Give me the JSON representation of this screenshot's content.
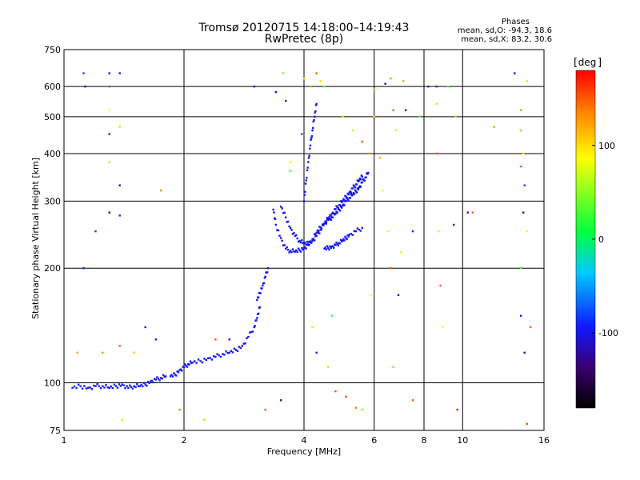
{
  "title": "Tromsø 20120715 14:18:00–14:19:43",
  "subtitle": "RwPretec (8p)",
  "phase_info": {
    "heading": "Phases",
    "line_o": "mean, sd,O: -94.3, 18.6",
    "line_x": "mean, sd,X: 83.2, 30.6"
  },
  "colorbar": {
    "unit": "deg",
    "range": [
      -180,
      180
    ],
    "ticks": [
      100,
      0,
      -100
    ]
  },
  "chart_data": {
    "type": "scatter",
    "title": "Tromsø 20120715 14:18:00–14:19:43",
    "xlabel": "Frequency [MHz]",
    "ylabel": "Stationary phase Virtual Height [km]",
    "xscale": "log",
    "yscale": "log",
    "xlim": [
      1,
      16
    ],
    "ylim": [
      75,
      750
    ],
    "xticks": [
      1,
      2,
      4,
      6,
      8,
      10,
      16
    ],
    "yticks": [
      75,
      100,
      200,
      300,
      400,
      500,
      600,
      750
    ],
    "grid": true,
    "color_variable": "phase [deg]",
    "traces": [
      {
        "phase": -95,
        "x": [
          1.05,
          1.1,
          1.15,
          1.2,
          1.25,
          1.3,
          1.35,
          1.4,
          1.45,
          1.5,
          1.55,
          1.6,
          1.65,
          1.7,
          1.75,
          1.8
        ],
        "y": [
          97,
          98,
          97,
          98,
          98,
          97,
          98,
          99,
          97,
          98,
          98,
          99,
          101,
          102,
          103,
          104
        ]
      },
      {
        "phase": -98,
        "x": [
          1.85,
          1.9,
          1.95,
          2.0,
          2.05,
          2.1,
          2.2,
          2.3,
          2.4,
          2.5,
          2.6,
          2.7,
          2.8,
          2.9,
          3.0,
          3.05,
          3.1
        ],
        "y": [
          104,
          105,
          108,
          110,
          112,
          113,
          114,
          116,
          117,
          119,
          120,
          122,
          125,
          132,
          140,
          148,
          158
        ]
      },
      {
        "phase": -96,
        "x": [
          3.05,
          3.1,
          3.15,
          3.2,
          3.25
        ],
        "y": [
          165,
          172,
          180,
          190,
          200
        ]
      },
      {
        "phase": -100,
        "x": [
          3.35,
          3.4,
          3.5,
          3.6,
          3.7,
          3.8,
          3.9,
          4.0,
          4.1,
          4.2,
          4.3,
          4.4,
          4.5,
          4.6,
          4.7,
          4.8,
          4.9,
          5.0,
          5.1,
          5.2,
          5.3,
          5.4,
          5.5,
          5.6,
          5.7,
          5.8
        ],
        "y": [
          285,
          260,
          240,
          225,
          222,
          221,
          223,
          226,
          230,
          238,
          248,
          256,
          262,
          268,
          272,
          278,
          285,
          292,
          300,
          306,
          312,
          318,
          326,
          336,
          346,
          356
        ]
      },
      {
        "phase": -97,
        "x": [
          3.5,
          3.6,
          3.7,
          3.8,
          3.9,
          4.0,
          4.1,
          4.2,
          4.3,
          4.4,
          4.5,
          4.6,
          4.7,
          4.8,
          4.9,
          5.0,
          5.1,
          5.2,
          5.3,
          5.4,
          5.5,
          5.6
        ],
        "y": [
          290,
          272,
          255,
          243,
          236,
          232,
          232,
          236,
          243,
          252,
          262,
          270,
          278,
          286,
          293,
          300,
          308,
          316,
          324,
          332,
          340,
          348
        ]
      },
      {
        "phase": -99,
        "x": [
          4.0,
          4.05,
          4.1,
          4.15,
          4.2,
          4.25,
          4.3
        ],
        "y": [
          300,
          340,
          380,
          420,
          460,
          500,
          540
        ]
      },
      {
        "phase": -95,
        "x": [
          4.5,
          4.6,
          4.7,
          4.8,
          4.9,
          5.0,
          5.1,
          5.2,
          5.4,
          5.6
        ],
        "y": [
          225,
          226,
          228,
          230,
          233,
          236,
          240,
          245,
          250,
          255
        ]
      }
    ],
    "scattered_points": [
      {
        "x": 1.12,
        "y": 650,
        "phase": -80
      },
      {
        "x": 1.13,
        "y": 600,
        "phase": -100
      },
      {
        "x": 1.3,
        "y": 650,
        "phase": -110
      },
      {
        "x": 1.3,
        "y": 600,
        "phase": -60
      },
      {
        "x": 1.3,
        "y": 520,
        "phase": 80
      },
      {
        "x": 1.3,
        "y": 450,
        "phase": -100
      },
      {
        "x": 1.3,
        "y": 380,
        "phase": 60
      },
      {
        "x": 1.3,
        "y": 280,
        "phase": -130
      },
      {
        "x": 1.38,
        "y": 650,
        "phase": -100
      },
      {
        "x": 1.38,
        "y": 470,
        "phase": 100
      },
      {
        "x": 1.38,
        "y": 330,
        "phase": -120
      },
      {
        "x": 1.38,
        "y": 275,
        "phase": -90
      },
      {
        "x": 1.38,
        "y": 125,
        "phase": 150
      },
      {
        "x": 1.12,
        "y": 200,
        "phase": -90
      },
      {
        "x": 1.2,
        "y": 250,
        "phase": -80
      },
      {
        "x": 1.08,
        "y": 120,
        "phase": 120
      },
      {
        "x": 1.25,
        "y": 120,
        "phase": 130
      },
      {
        "x": 1.5,
        "y": 120,
        "phase": 110
      },
      {
        "x": 1.4,
        "y": 80,
        "phase": 60
      },
      {
        "x": 1.75,
        "y": 320,
        "phase": 130
      },
      {
        "x": 1.7,
        "y": 130,
        "phase": -110
      },
      {
        "x": 1.6,
        "y": 140,
        "phase": -100
      },
      {
        "x": 1.95,
        "y": 85,
        "phase": 140
      },
      {
        "x": 2.4,
        "y": 130,
        "phase": 150
      },
      {
        "x": 2.6,
        "y": 130,
        "phase": -100
      },
      {
        "x": 3.0,
        "y": 600,
        "phase": -100
      },
      {
        "x": 3.2,
        "y": 85,
        "phase": 150
      },
      {
        "x": 3.5,
        "y": 90,
        "phase": -120
      },
      {
        "x": 3.55,
        "y": 650,
        "phase": 40
      },
      {
        "x": 3.6,
        "y": 550,
        "phase": -100
      },
      {
        "x": 3.7,
        "y": 380,
        "phase": 80
      },
      {
        "x": 3.7,
        "y": 360,
        "phase": 30
      },
      {
        "x": 4.0,
        "y": 630,
        "phase": 90
      },
      {
        "x": 4.15,
        "y": 600,
        "phase": 120
      },
      {
        "x": 4.3,
        "y": 650,
        "phase": 150
      },
      {
        "x": 4.4,
        "y": 620,
        "phase": 100
      },
      {
        "x": 4.5,
        "y": 600,
        "phase": 40
      },
      {
        "x": 4.7,
        "y": 150,
        "phase": 20
      },
      {
        "x": 4.6,
        "y": 110,
        "phase": 60
      },
      {
        "x": 4.3,
        "y": 120,
        "phase": -100
      },
      {
        "x": 4.8,
        "y": 95,
        "phase": 150
      },
      {
        "x": 5.1,
        "y": 92,
        "phase": 160
      },
      {
        "x": 5.4,
        "y": 86,
        "phase": 140
      },
      {
        "x": 5.6,
        "y": 85,
        "phase": 50
      },
      {
        "x": 6.0,
        "y": 590,
        "phase": 40
      },
      {
        "x": 6.0,
        "y": 500,
        "phase": 100
      },
      {
        "x": 6.2,
        "y": 390,
        "phase": 120
      },
      {
        "x": 6.3,
        "y": 320,
        "phase": 80
      },
      {
        "x": 6.4,
        "y": 610,
        "phase": -120
      },
      {
        "x": 6.6,
        "y": 630,
        "phase": 130
      },
      {
        "x": 6.7,
        "y": 520,
        "phase": 150
      },
      {
        "x": 6.8,
        "y": 460,
        "phase": 100
      },
      {
        "x": 7.1,
        "y": 620,
        "phase": 120
      },
      {
        "x": 7.2,
        "y": 520,
        "phase": -100
      },
      {
        "x": 6.6,
        "y": 200,
        "phase": 150
      },
      {
        "x": 6.9,
        "y": 170,
        "phase": -110
      },
      {
        "x": 6.7,
        "y": 110,
        "phase": 40
      },
      {
        "x": 7.5,
        "y": 90,
        "phase": 150
      },
      {
        "x": 8.2,
        "y": 600,
        "phase": -100
      },
      {
        "x": 8.6,
        "y": 540,
        "phase": 60
      },
      {
        "x": 8.6,
        "y": 600,
        "phase": -90
      },
      {
        "x": 8.6,
        "y": 400,
        "phase": 150
      },
      {
        "x": 8.7,
        "y": 250,
        "phase": 60
      },
      {
        "x": 8.8,
        "y": 180,
        "phase": 150
      },
      {
        "x": 8.9,
        "y": 140,
        "phase": 80
      },
      {
        "x": 9.2,
        "y": 600,
        "phase": 30
      },
      {
        "x": 9.6,
        "y": 500,
        "phase": 40
      },
      {
        "x": 9.5,
        "y": 260,
        "phase": -110
      },
      {
        "x": 9.7,
        "y": 85,
        "phase": 170
      },
      {
        "x": 10.3,
        "y": 280,
        "phase": -110
      },
      {
        "x": 10.6,
        "y": 280,
        "phase": 150
      },
      {
        "x": 12.0,
        "y": 470,
        "phase": 120
      },
      {
        "x": 13.5,
        "y": 650,
        "phase": -110
      },
      {
        "x": 14.5,
        "y": 620,
        "phase": 60
      },
      {
        "x": 14.0,
        "y": 520,
        "phase": 130
      },
      {
        "x": 14.0,
        "y": 460,
        "phase": 40
      },
      {
        "x": 14.2,
        "y": 400,
        "phase": 100
      },
      {
        "x": 14.0,
        "y": 370,
        "phase": 150
      },
      {
        "x": 14.3,
        "y": 330,
        "phase": -80
      },
      {
        "x": 14.2,
        "y": 280,
        "phase": -110
      },
      {
        "x": 14.5,
        "y": 250,
        "phase": 90
      },
      {
        "x": 14.0,
        "y": 200,
        "phase": 30
      },
      {
        "x": 14.0,
        "y": 150,
        "phase": -100
      },
      {
        "x": 14.8,
        "y": 140,
        "phase": 150
      },
      {
        "x": 14.3,
        "y": 120,
        "phase": -120
      },
      {
        "x": 14.5,
        "y": 78,
        "phase": 160
      },
      {
        "x": 3.4,
        "y": 580,
        "phase": -110
      },
      {
        "x": 3.95,
        "y": 450,
        "phase": -80
      },
      {
        "x": 5.3,
        "y": 460,
        "phase": 60
      },
      {
        "x": 5.0,
        "y": 500,
        "phase": 100
      },
      {
        "x": 5.6,
        "y": 430,
        "phase": 150
      },
      {
        "x": 5.8,
        "y": 400,
        "phase": 130
      },
      {
        "x": 6.5,
        "y": 250,
        "phase": 90
      },
      {
        "x": 7.0,
        "y": 220,
        "phase": 70
      },
      {
        "x": 5.9,
        "y": 170,
        "phase": 80
      },
      {
        "x": 4.2,
        "y": 140,
        "phase": 100
      },
      {
        "x": 7.8,
        "y": 500,
        "phase": 30
      },
      {
        "x": 7.5,
        "y": 250,
        "phase": -90
      },
      {
        "x": 2.25,
        "y": 80,
        "phase": 110
      }
    ]
  }
}
